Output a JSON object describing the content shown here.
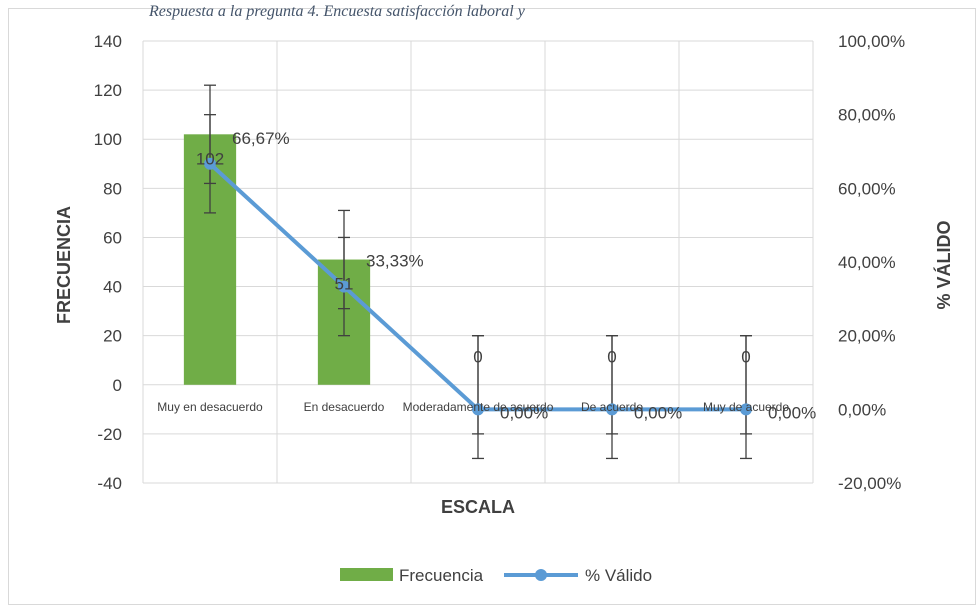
{
  "caption": "Respuesta a la pregunta 4. Encuesta satisfacción laboral y",
  "chart_data": {
    "type": "bar",
    "categories": [
      "Muy en desacuerdo",
      "En desacuerdo",
      "Moderadamente de acuerdo",
      "De acuerdo",
      "Muy de acuerdo"
    ],
    "series": [
      {
        "name": "Frecuencia",
        "axis": "primary",
        "type": "bar",
        "color": "#70ad47",
        "values": [
          102,
          51,
          0,
          0,
          0
        ],
        "labels": [
          "102",
          "51",
          "0",
          "0",
          "0"
        ],
        "error_inner": [
          [
            82,
            110
          ],
          [
            31,
            60
          ],
          [
            -20,
            20
          ],
          [
            -20,
            20
          ],
          [
            -20,
            20
          ]
        ],
        "error_outer": [
          [
            70,
            122
          ],
          [
            20,
            71
          ],
          [
            -30,
            20
          ],
          [
            -30,
            20
          ],
          [
            -30,
            20
          ]
        ]
      },
      {
        "name": "% Válido",
        "axis": "secondary",
        "type": "line",
        "color": "#5b9bd5",
        "values": [
          66.67,
          33.33,
          0,
          0,
          0
        ],
        "labels": [
          "66,67%",
          "33,33%",
          "0,00%",
          "0,00%",
          "0,00%"
        ]
      }
    ],
    "xlabel": "ESCALA",
    "ylabel": "FRECUENCIA",
    "y2label": "% VÁLIDO",
    "ylim": [
      -40,
      140
    ],
    "yticks": [
      "140",
      "120",
      "100",
      "80",
      "60",
      "40",
      "20",
      "0",
      "-20",
      "-40"
    ],
    "y2lim": [
      -20,
      100
    ],
    "y2ticks": [
      "100,00%",
      "80,00%",
      "60,00%",
      "40,00%",
      "20,00%",
      "0,00%",
      "-20,00%"
    ],
    "grid": true,
    "legend": "bottom"
  }
}
